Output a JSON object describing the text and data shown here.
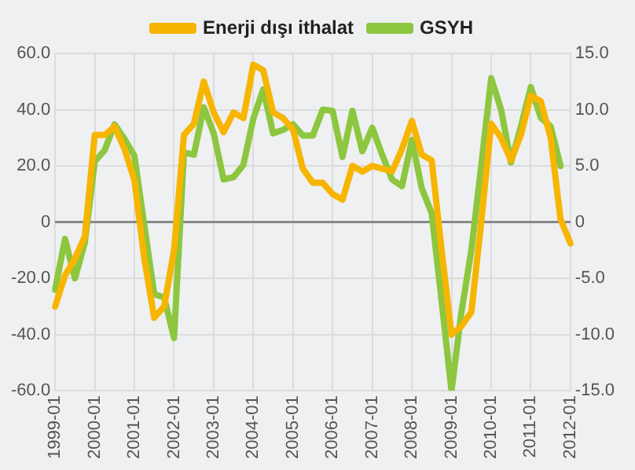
{
  "chart_data": {
    "type": "line",
    "categories": [
      "1999-01",
      null,
      null,
      null,
      "2000-01",
      null,
      null,
      null,
      "2001-01",
      null,
      null,
      null,
      "2002-01",
      null,
      null,
      null,
      "2003-01",
      null,
      null,
      null,
      "2004-01",
      null,
      null,
      null,
      "2005-01",
      null,
      null,
      null,
      "2006-01",
      null,
      null,
      null,
      "2007-01",
      null,
      null,
      null,
      "2008-01",
      null,
      null,
      null,
      "2009-01",
      null,
      null,
      null,
      "2010-01",
      null,
      null,
      null,
      "2011-01",
      null,
      null,
      null,
      "2012-01"
    ],
    "series": [
      {
        "name": "Enerji dışı ithalat",
        "color": "#f7b500",
        "values": [
          -30,
          -19,
          -13,
          -5,
          31,
          31,
          34,
          26,
          15,
          -13,
          -34,
          -30,
          -10,
          31,
          35,
          50,
          39,
          32,
          39,
          37,
          56,
          54,
          39,
          37,
          33,
          19,
          14,
          14,
          10,
          8,
          20,
          18,
          20,
          19,
          18,
          26,
          36,
          24,
          22,
          -10,
          -40,
          -37,
          -32,
          0,
          35,
          30,
          22,
          31,
          45,
          43,
          30,
          1,
          -7.6
        ]
      },
      {
        "name": "GSYH",
        "color": "#8dc63f",
        "axis": "y2",
        "values": [
          -6,
          -1.5,
          -5,
          -1.8,
          5.4,
          6.4,
          8.7,
          7.4,
          5.9,
          -0.3,
          -6.4,
          -6.7,
          -10.3,
          6.2,
          6,
          10.2,
          7.9,
          3.8,
          4,
          5.1,
          9.2,
          11.8,
          7.9,
          8.2,
          8.7,
          7.7,
          7.7,
          10,
          9.9,
          5.8,
          9.9,
          6.3,
          8.4,
          6,
          3.8,
          3.2,
          7.3,
          3,
          0.8,
          -7,
          -15,
          -8,
          -2.5,
          5,
          12.8,
          10,
          5.3,
          8.5,
          12,
          9.3,
          8.5,
          5,
          null
        ]
      }
    ],
    "ylim": [
      -60,
      60
    ],
    "yticks": [
      {
        "value": -60,
        "label": "-60.0"
      },
      {
        "value": -40,
        "label": "-40.0"
      },
      {
        "value": -20,
        "label": "-20.0"
      },
      0,
      {
        "value": 20,
        "label": "20.0"
      },
      {
        "value": 40,
        "label": "40.0"
      },
      {
        "value": 60,
        "label": "60.0"
      }
    ],
    "y2lim": [
      -15,
      15
    ],
    "y2ticks": [
      {
        "value": -15,
        "label": "-15.0"
      },
      {
        "value": -10,
        "label": "-10.0"
      },
      {
        "value": -5,
        "label": "-5.0"
      },
      0,
      {
        "value": 5,
        "label": "5.0"
      },
      {
        "value": 10,
        "label": "10.0"
      },
      {
        "value": 15,
        "label": "15.0"
      }
    ],
    "grid": true,
    "legend": "top",
    "marker": "none",
    "line_style": "solid"
  }
}
